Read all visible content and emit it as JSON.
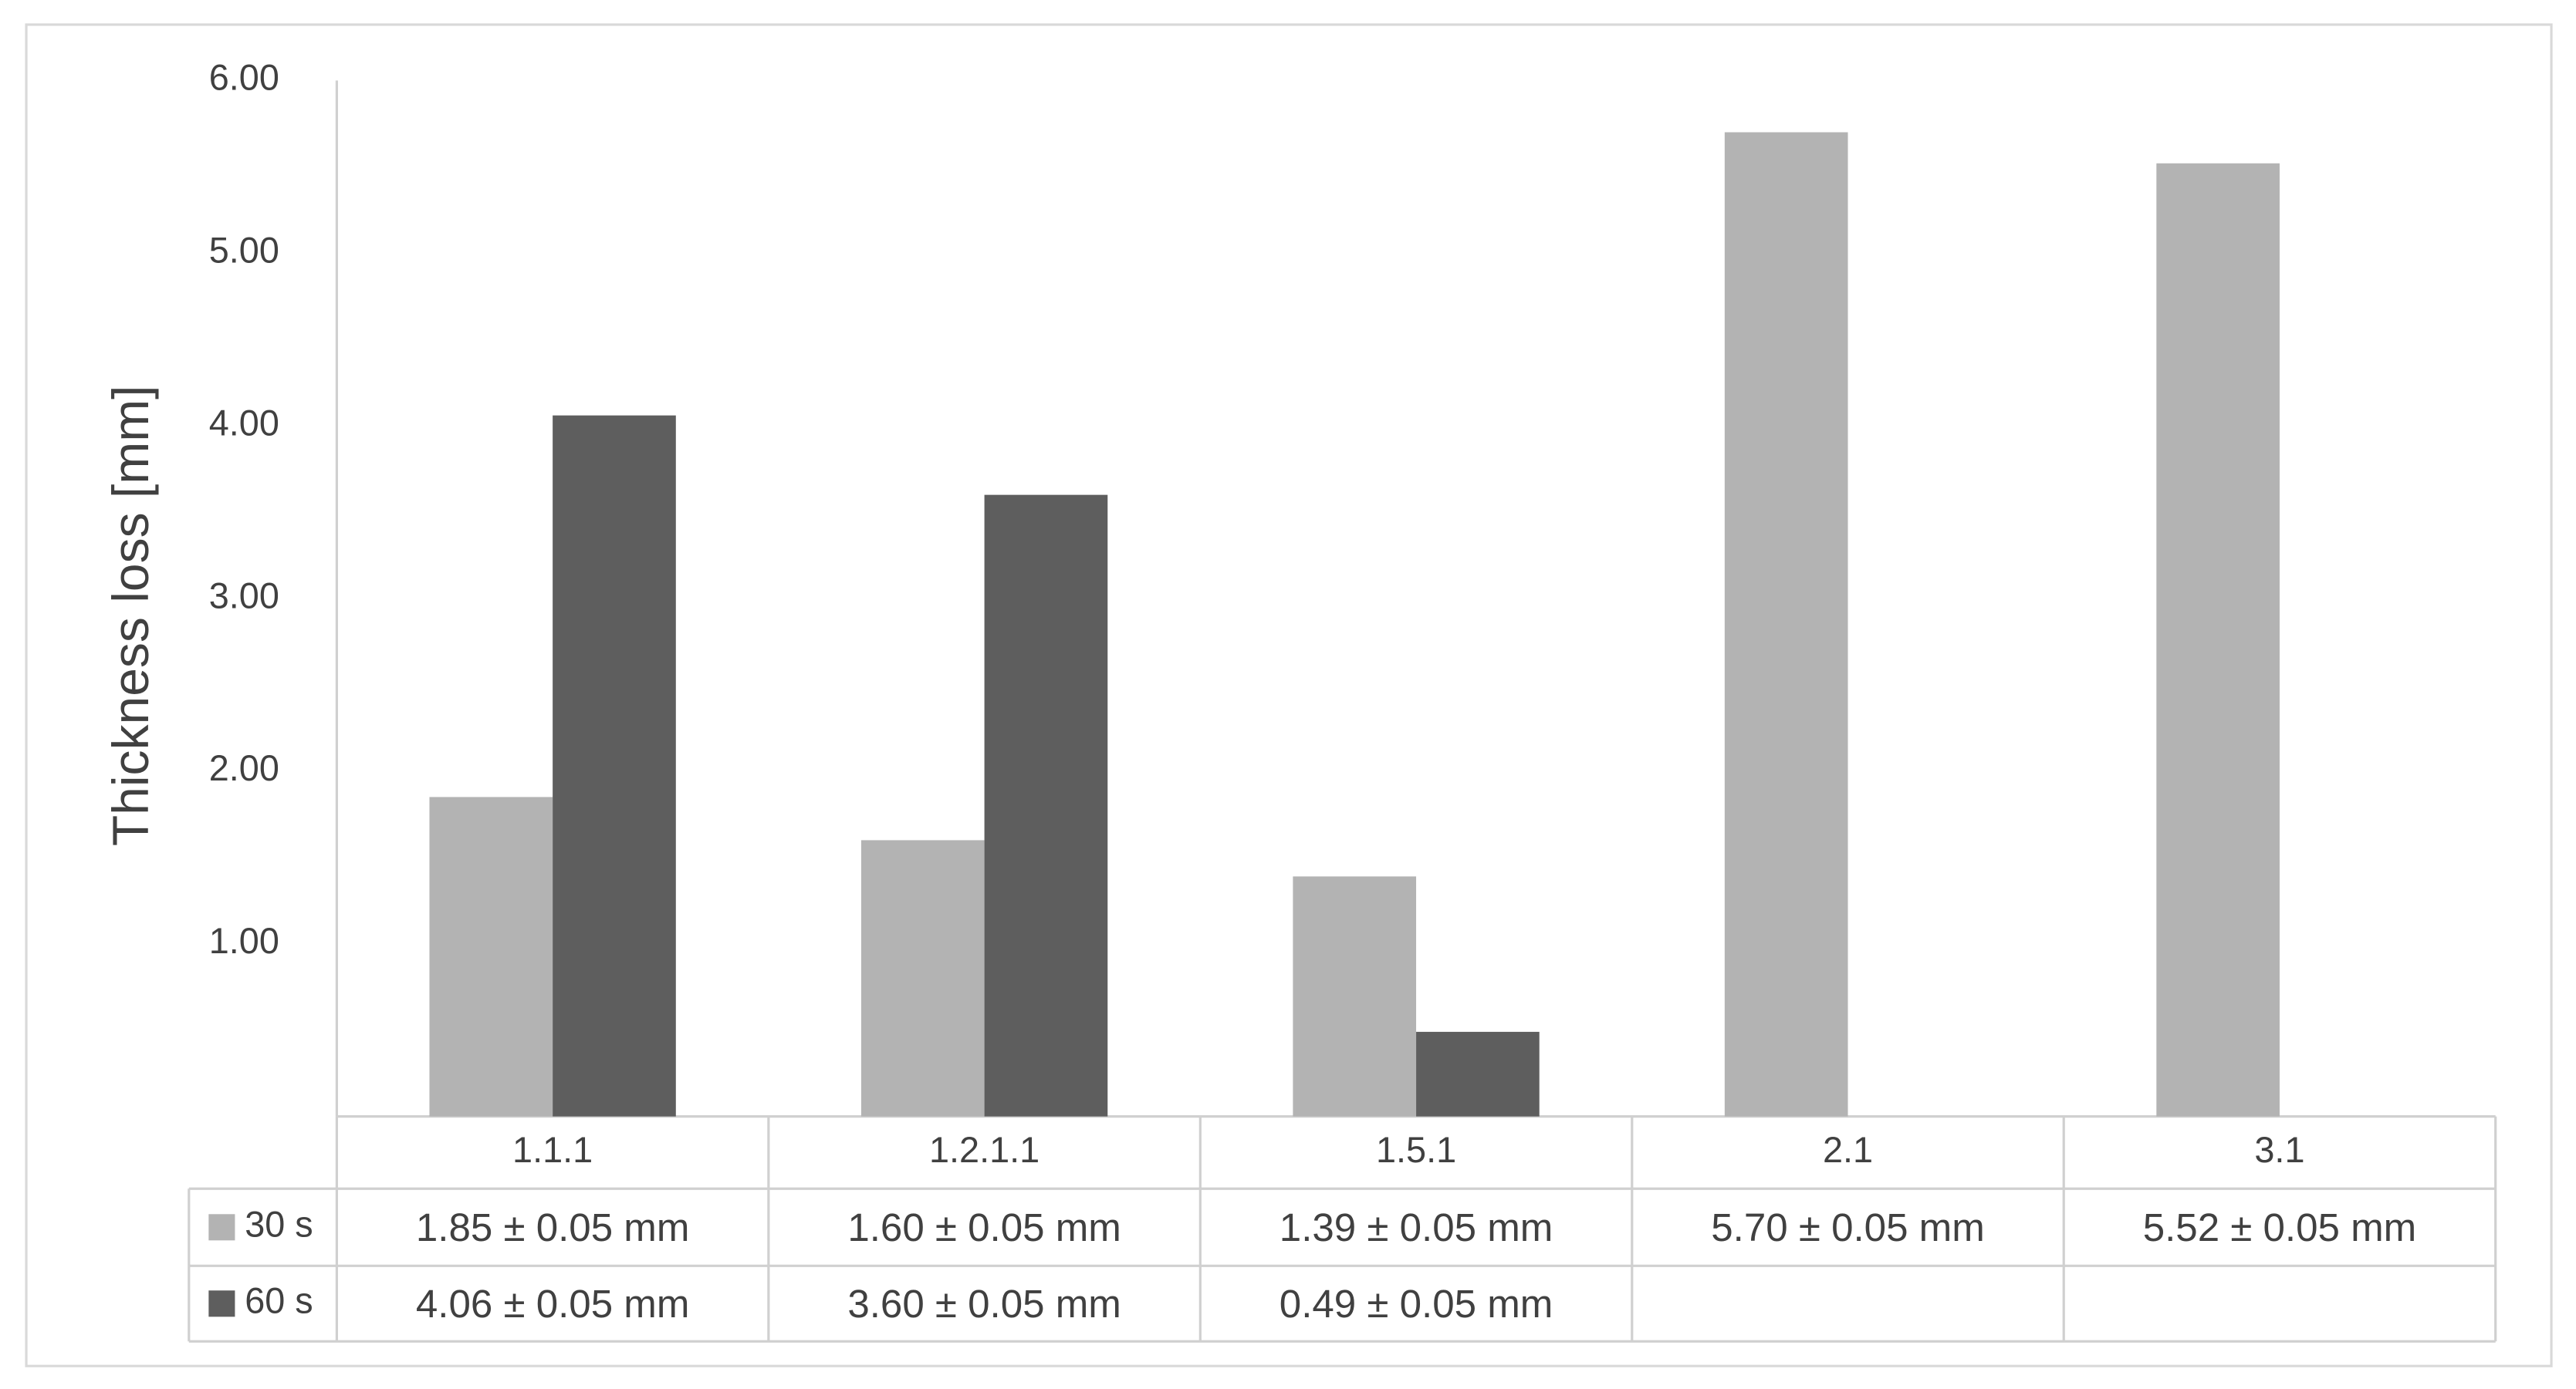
{
  "chart_data": {
    "type": "bar",
    "y_axis_label": "Thickness  loss [mm]",
    "categories": [
      "1.1.1",
      "1.2.1.1",
      "1.5.1",
      "2.1",
      "3.1"
    ],
    "series": [
      {
        "name": "30 s",
        "color": "#b3b3b3",
        "values": [
          1.85,
          1.6,
          1.39,
          5.7,
          5.52
        ],
        "value_labels": [
          "1.85 ± 0.05 mm",
          "1.60 ± 0.05 mm",
          "1.39 ± 0.05 mm",
          "5.70 ± 0.05 mm",
          "5.52 ± 0.05 mm"
        ]
      },
      {
        "name": "60 s",
        "color": "#5e5e5e",
        "values": [
          4.06,
          3.6,
          0.49,
          null,
          null
        ],
        "value_labels": [
          "4.06 ± 0.05 mm",
          "3.60 ± 0.05 mm",
          "0.49 ± 0.05 mm",
          null,
          null
        ]
      }
    ],
    "ylim": [
      0,
      6
    ],
    "yticks": [
      {
        "value": 1,
        "label": "1.00"
      },
      {
        "value": 2,
        "label": "2.00"
      },
      {
        "value": 3,
        "label": "3.00"
      },
      {
        "value": 4,
        "label": "4.00"
      },
      {
        "value": 5,
        "label": "5.00"
      },
      {
        "value": 6,
        "label": "6.00"
      }
    ],
    "grid": false,
    "data_table": true
  }
}
